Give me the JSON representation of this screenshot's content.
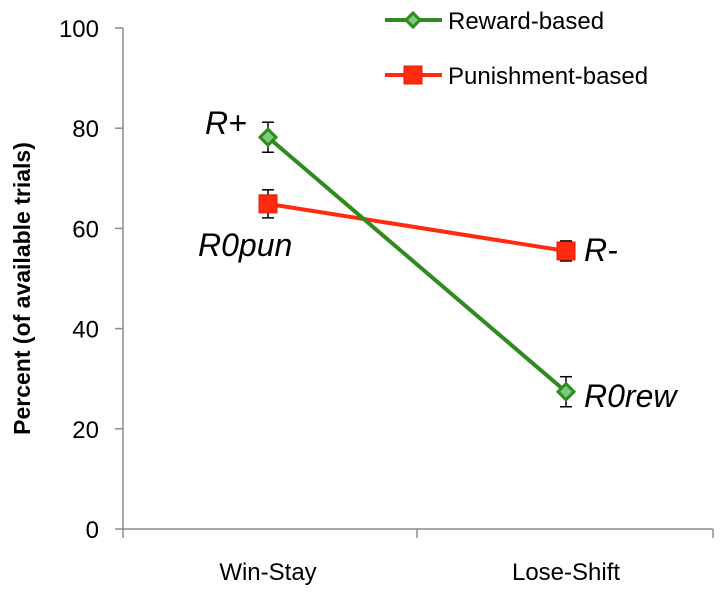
{
  "chart_data": {
    "type": "line",
    "categories": [
      "Win-Stay",
      "Lose-Shift"
    ],
    "ylabel": "Percent (of available trials)",
    "xlabel": "",
    "ylim": [
      0,
      100
    ],
    "yticks": [
      0,
      20,
      40,
      60,
      80,
      100
    ],
    "grid": false,
    "legend_position": "top-right",
    "series": [
      {
        "name": "Reward-based",
        "values": [
          78.2,
          27.4
        ],
        "errors": [
          3.0,
          3.0
        ],
        "marker": "diamond",
        "color": "#2e8b1e",
        "point_labels": [
          "R+",
          "R0rew"
        ]
      },
      {
        "name": "Punishment-based",
        "values": [
          64.9,
          55.5
        ],
        "errors": [
          2.8,
          2.0
        ],
        "marker": "square",
        "color": "#ff2a10",
        "point_labels": [
          "R0pun",
          "R-"
        ]
      }
    ]
  }
}
